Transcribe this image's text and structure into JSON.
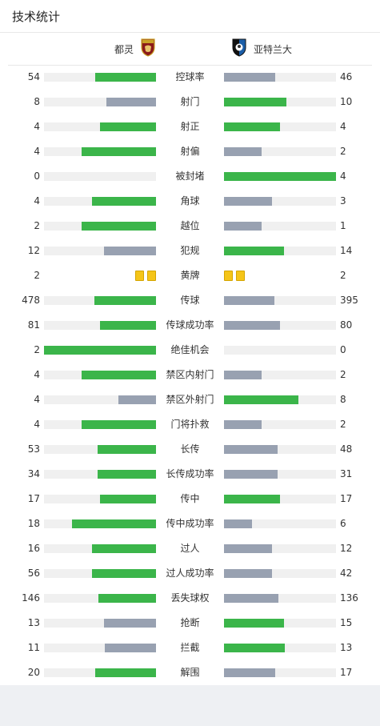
{
  "header": {
    "title": "技术统计"
  },
  "teams": {
    "home": {
      "name": "都灵",
      "logo_icon": "torino-crest-icon"
    },
    "away": {
      "name": "亚特兰大",
      "logo_icon": "atalanta-crest-icon"
    }
  },
  "colors": {
    "win": "#3bb54a",
    "lose": "#98a1b1",
    "track": "#f0f0f0",
    "yellow_card": "#f5c518"
  },
  "stats": [
    {
      "label": "控球率",
      "home": "54",
      "away": "46"
    },
    {
      "label": "射门",
      "home": "8",
      "away": "10"
    },
    {
      "label": "射正",
      "home": "4",
      "away": "4"
    },
    {
      "label": "射偏",
      "home": "4",
      "away": "2"
    },
    {
      "label": "被封堵",
      "home": "0",
      "away": "4"
    },
    {
      "label": "角球",
      "home": "4",
      "away": "3"
    },
    {
      "label": "越位",
      "home": "2",
      "away": "1"
    },
    {
      "label": "犯规",
      "home": "12",
      "away": "14"
    },
    {
      "label": "黄牌",
      "home": "2",
      "away": "2",
      "cards": true
    },
    {
      "label": "传球",
      "home": "478",
      "away": "395"
    },
    {
      "label": "传球成功率",
      "home": "81",
      "away": "80"
    },
    {
      "label": "绝佳机会",
      "home": "2",
      "away": "0"
    },
    {
      "label": "禁区内射门",
      "home": "4",
      "away": "2"
    },
    {
      "label": "禁区外射门",
      "home": "4",
      "away": "8"
    },
    {
      "label": "门将扑救",
      "home": "4",
      "away": "2"
    },
    {
      "label": "长传",
      "home": "53",
      "away": "48"
    },
    {
      "label": "长传成功率",
      "home": "34",
      "away": "31"
    },
    {
      "label": "传中",
      "home": "17",
      "away": "17"
    },
    {
      "label": "传中成功率",
      "home": "18",
      "away": "6"
    },
    {
      "label": "过人",
      "home": "16",
      "away": "12"
    },
    {
      "label": "过人成功率",
      "home": "56",
      "away": "42"
    },
    {
      "label": "丢失球权",
      "home": "146",
      "away": "136"
    },
    {
      "label": "抢断",
      "home": "13",
      "away": "15"
    },
    {
      "label": "拦截",
      "home": "11",
      "away": "13"
    },
    {
      "label": "解围",
      "home": "20",
      "away": "17"
    }
  ]
}
